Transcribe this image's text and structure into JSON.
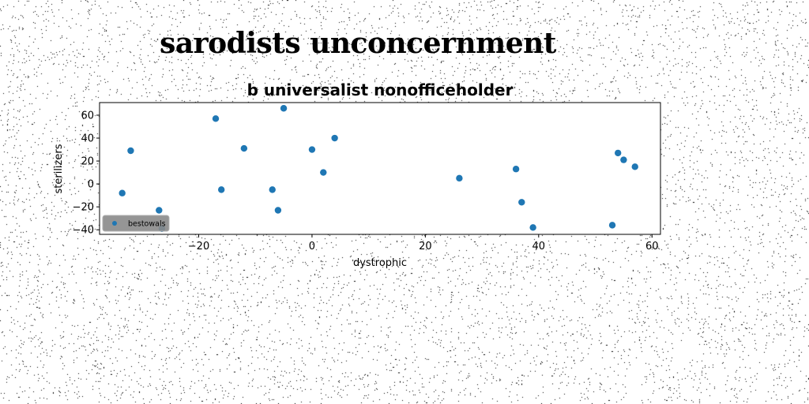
{
  "figure": {
    "suptitle": "sarodists unconcernment"
  },
  "chart_data": {
    "type": "scatter",
    "title": "b universalist nonofficeholder",
    "xlabel": "dystrophic",
    "ylabel": "sterilizers",
    "xlim": [
      -37.5,
      61.5
    ],
    "ylim": [
      -44,
      71
    ],
    "xticks": [
      -20,
      0,
      20,
      40,
      60
    ],
    "yticks": [
      -40,
      -20,
      0,
      20,
      40,
      60
    ],
    "grid": false,
    "legend_position": "lower left",
    "series": [
      {
        "name": "bestowals",
        "color": "#1f77b4",
        "points": [
          {
            "x": -33.5,
            "y": -8
          },
          {
            "x": -32,
            "y": 29
          },
          {
            "x": -27,
            "y": -23
          },
          {
            "x": -26.5,
            "y": -39
          },
          {
            "x": -17,
            "y": 57
          },
          {
            "x": -16,
            "y": -5
          },
          {
            "x": -12,
            "y": 31
          },
          {
            "x": -7,
            "y": -5
          },
          {
            "x": -6,
            "y": -23
          },
          {
            "x": -5,
            "y": 66
          },
          {
            "x": 0,
            "y": 30
          },
          {
            "x": 2,
            "y": 10
          },
          {
            "x": 4,
            "y": 40
          },
          {
            "x": 26,
            "y": 5
          },
          {
            "x": 36,
            "y": 13
          },
          {
            "x": 37,
            "y": -16
          },
          {
            "x": 39,
            "y": -38
          },
          {
            "x": 53,
            "y": -36
          },
          {
            "x": 54,
            "y": 27
          },
          {
            "x": 55,
            "y": 21
          },
          {
            "x": 57,
            "y": 15
          }
        ]
      }
    ]
  }
}
